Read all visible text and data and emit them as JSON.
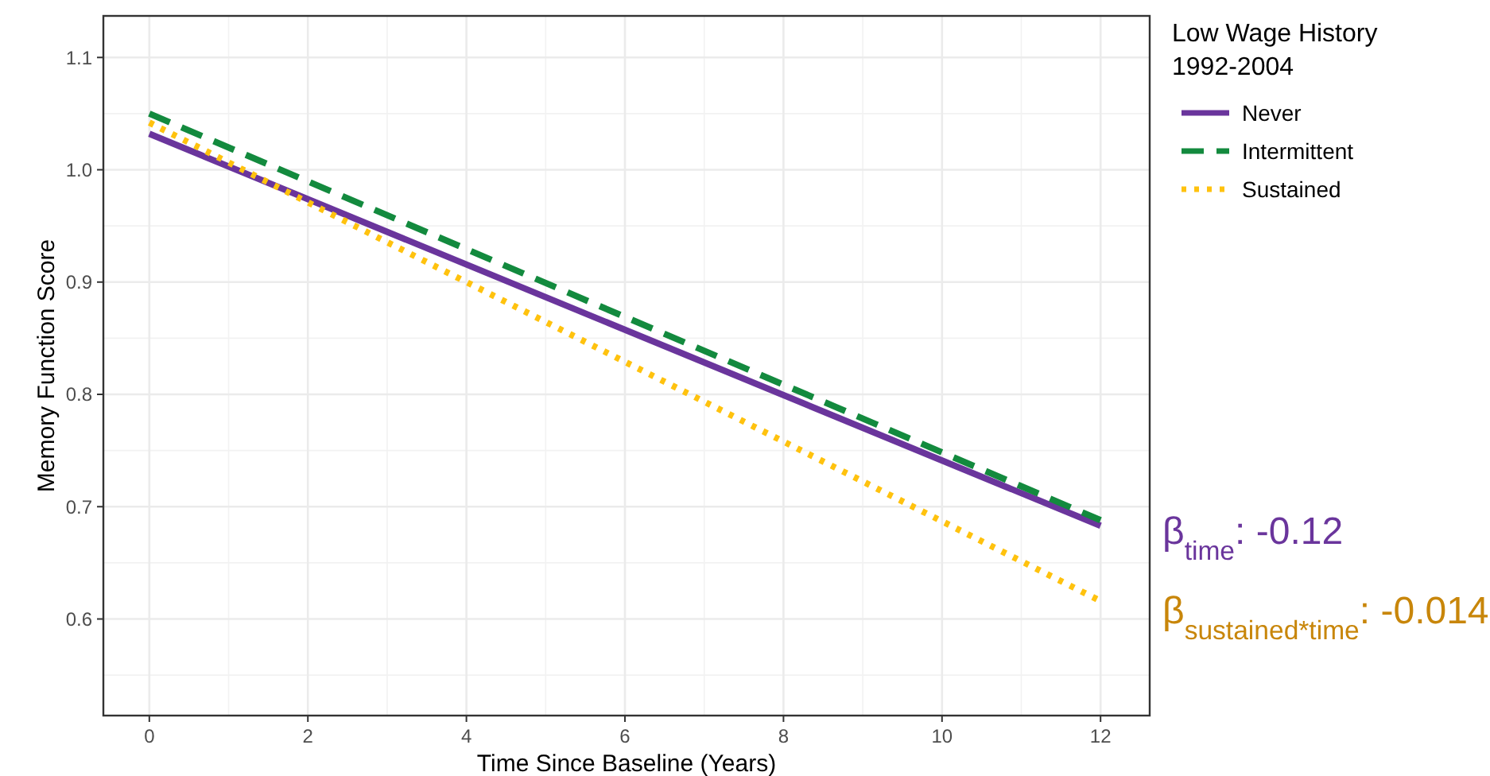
{
  "chart_data": {
    "type": "line",
    "xlabel": "Time Since Baseline (Years)",
    "ylabel": "Memory Function Score",
    "legend_title": "Low Wage History\n1992-2004",
    "x": [
      0,
      12
    ],
    "series": [
      {
        "name": "Never",
        "color": "#6a359c",
        "values": [
          1.032,
          0.683
        ],
        "line_style": "solid"
      },
      {
        "name": "Intermittent",
        "color": "#138a3e",
        "values": [
          1.05,
          0.688
        ],
        "line_style": "dashed"
      },
      {
        "name": "Sustained",
        "color": "#ffc20e",
        "values": [
          1.042,
          0.616
        ],
        "line_style": "dotted"
      }
    ],
    "xlim": [
      -0.58,
      12.62
    ],
    "ylim": [
      0.514,
      1.137
    ],
    "xticks": [
      0,
      2,
      4,
      6,
      8,
      10,
      12
    ],
    "yticks": [
      0.6,
      0.7,
      0.8,
      0.9,
      {
        "value": 1,
        "label": "1.0"
      },
      1.1
    ],
    "grid": true,
    "legend": "right",
    "marker": "none",
    "annotations": [
      "β$_{time}$: -0.12",
      "β$_{sustained*time}$: -0.014"
    ]
  }
}
